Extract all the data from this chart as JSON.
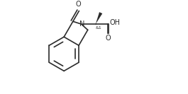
{
  "bg_color": "#ffffff",
  "line_color": "#2b2b2b",
  "line_width": 1.2,
  "font_size_label": 7.0,
  "font_size_small": 5.5,
  "figsize": [
    2.65,
    1.33
  ],
  "dpi": 100,
  "bx": 0.2,
  "by": 0.48,
  "r": 0.185,
  "xlim": [
    0.0,
    1.05
  ],
  "ylim": [
    0.05,
    1.0
  ]
}
